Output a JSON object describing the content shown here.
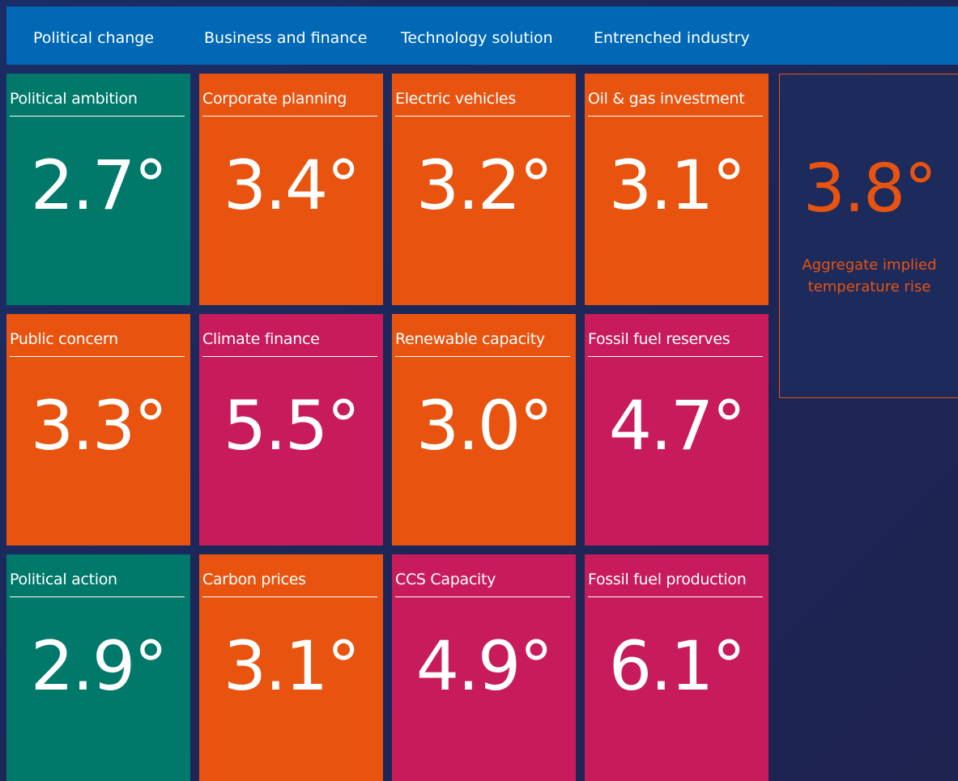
{
  "header": {
    "columns": [
      "Political change",
      "Business and finance",
      "Technology solution",
      "Entrenched industry"
    ]
  },
  "grid": {
    "rows": [
      [
        {
          "title": "Political ambition",
          "value": "2.7°",
          "color": "#00796b"
        },
        {
          "title": "Corporate planning",
          "value": "3.4°",
          "color": "#e8540f"
        },
        {
          "title": "Electric vehicles",
          "value": "3.2°",
          "color": "#e8540f"
        },
        {
          "title": "Oil & gas investment",
          "value": "3.1°",
          "color": "#e8540f"
        }
      ],
      [
        {
          "title": "Public concern",
          "value": "3.3°",
          "color": "#e8540f"
        },
        {
          "title": "Climate finance",
          "value": "5.5°",
          "color": "#c81b5b"
        },
        {
          "title": "Renewable capacity",
          "value": "3.0°",
          "color": "#e8540f"
        },
        {
          "title": "Fossil fuel reserves",
          "value": "4.7°",
          "color": "#c81b5b"
        }
      ],
      [
        {
          "title": "Political action",
          "value": "2.9°",
          "color": "#00796b"
        },
        {
          "title": "Carbon prices",
          "value": "3.1°",
          "color": "#e8540f"
        },
        {
          "title": "CCS Capacity",
          "value": "4.9°",
          "color": "#c81b5b"
        },
        {
          "title": "Fossil fuel production",
          "value": "6.1°",
          "color": "#c81b5b"
        }
      ]
    ]
  },
  "aggregate": {
    "value": "3.8°",
    "label": "Aggregate implied temperature rise",
    "color": "#e8540f"
  }
}
